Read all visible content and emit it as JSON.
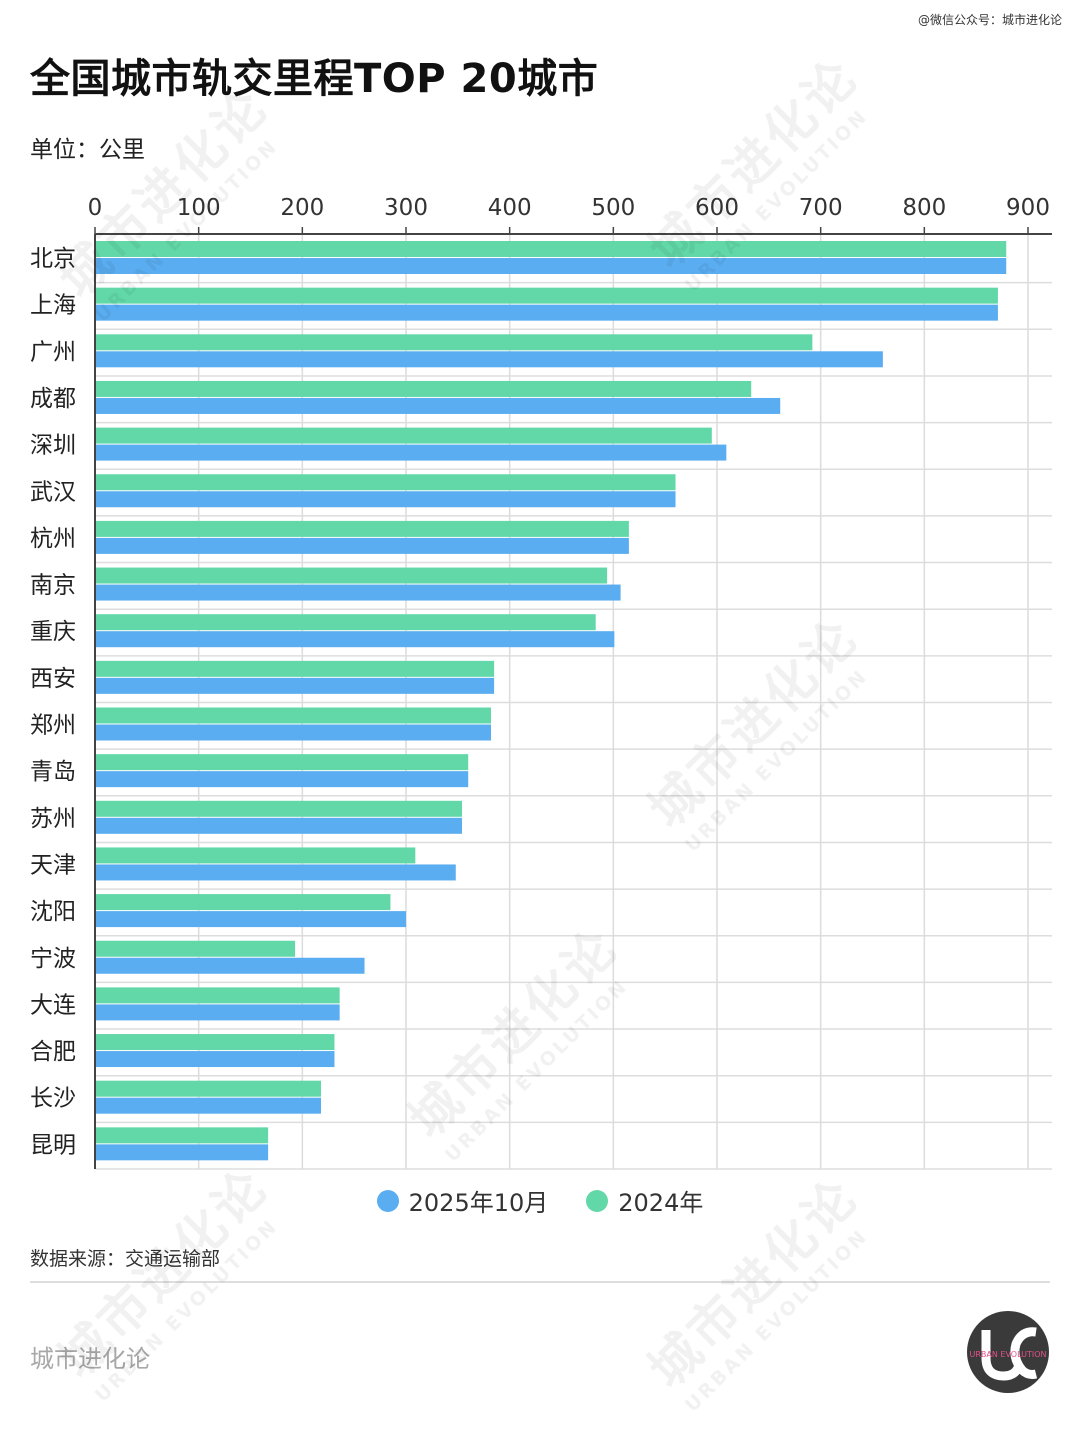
{
  "header": {
    "credit": "@微信公众号：城市进化论",
    "title": "全国城市轨交里程TOP 20城市",
    "unit": "单位：公里"
  },
  "footer": {
    "source": "数据来源：交通运输部",
    "brand": "城市进化论",
    "logo_text": "URBAN EVOLUTION"
  },
  "watermark": {
    "cn": "城市进化论",
    "en": "URBAN EVOLUTION"
  },
  "colors": {
    "series_2025": "#5aadf0",
    "series_2024": "#62d8a8",
    "grid": "#dcdcdc",
    "axis": "#444444"
  },
  "chart_data": {
    "type": "bar",
    "orientation": "horizontal",
    "categories": [
      "北京",
      "上海",
      "广州",
      "成都",
      "深圳",
      "武汉",
      "杭州",
      "南京",
      "重庆",
      "西安",
      "郑州",
      "青岛",
      "苏州",
      "天津",
      "沈阳",
      "宁波",
      "大连",
      "合肥",
      "长沙",
      "昆明"
    ],
    "series": [
      {
        "name": "2024年",
        "color": "#62d8a8",
        "values": [
          879,
          871,
          692,
          633,
          595,
          560,
          515,
          494,
          483,
          385,
          382,
          360,
          354,
          309,
          285,
          193,
          236,
          231,
          218,
          167
        ]
      },
      {
        "name": "2025年10月",
        "color": "#5aadf0",
        "values": [
          879,
          871,
          760,
          661,
          609,
          560,
          515,
          507,
          501,
          385,
          382,
          360,
          354,
          348,
          300,
          260,
          236,
          231,
          218,
          167
        ]
      }
    ],
    "xlim": [
      0,
      900
    ],
    "xticks": [
      "0",
      "100",
      "200",
      "300",
      "400",
      "500",
      "600",
      "700",
      "800",
      "900"
    ],
    "grid": true,
    "legend_position": "bottom",
    "legend_order": [
      "2025年10月",
      "2024年"
    ]
  }
}
